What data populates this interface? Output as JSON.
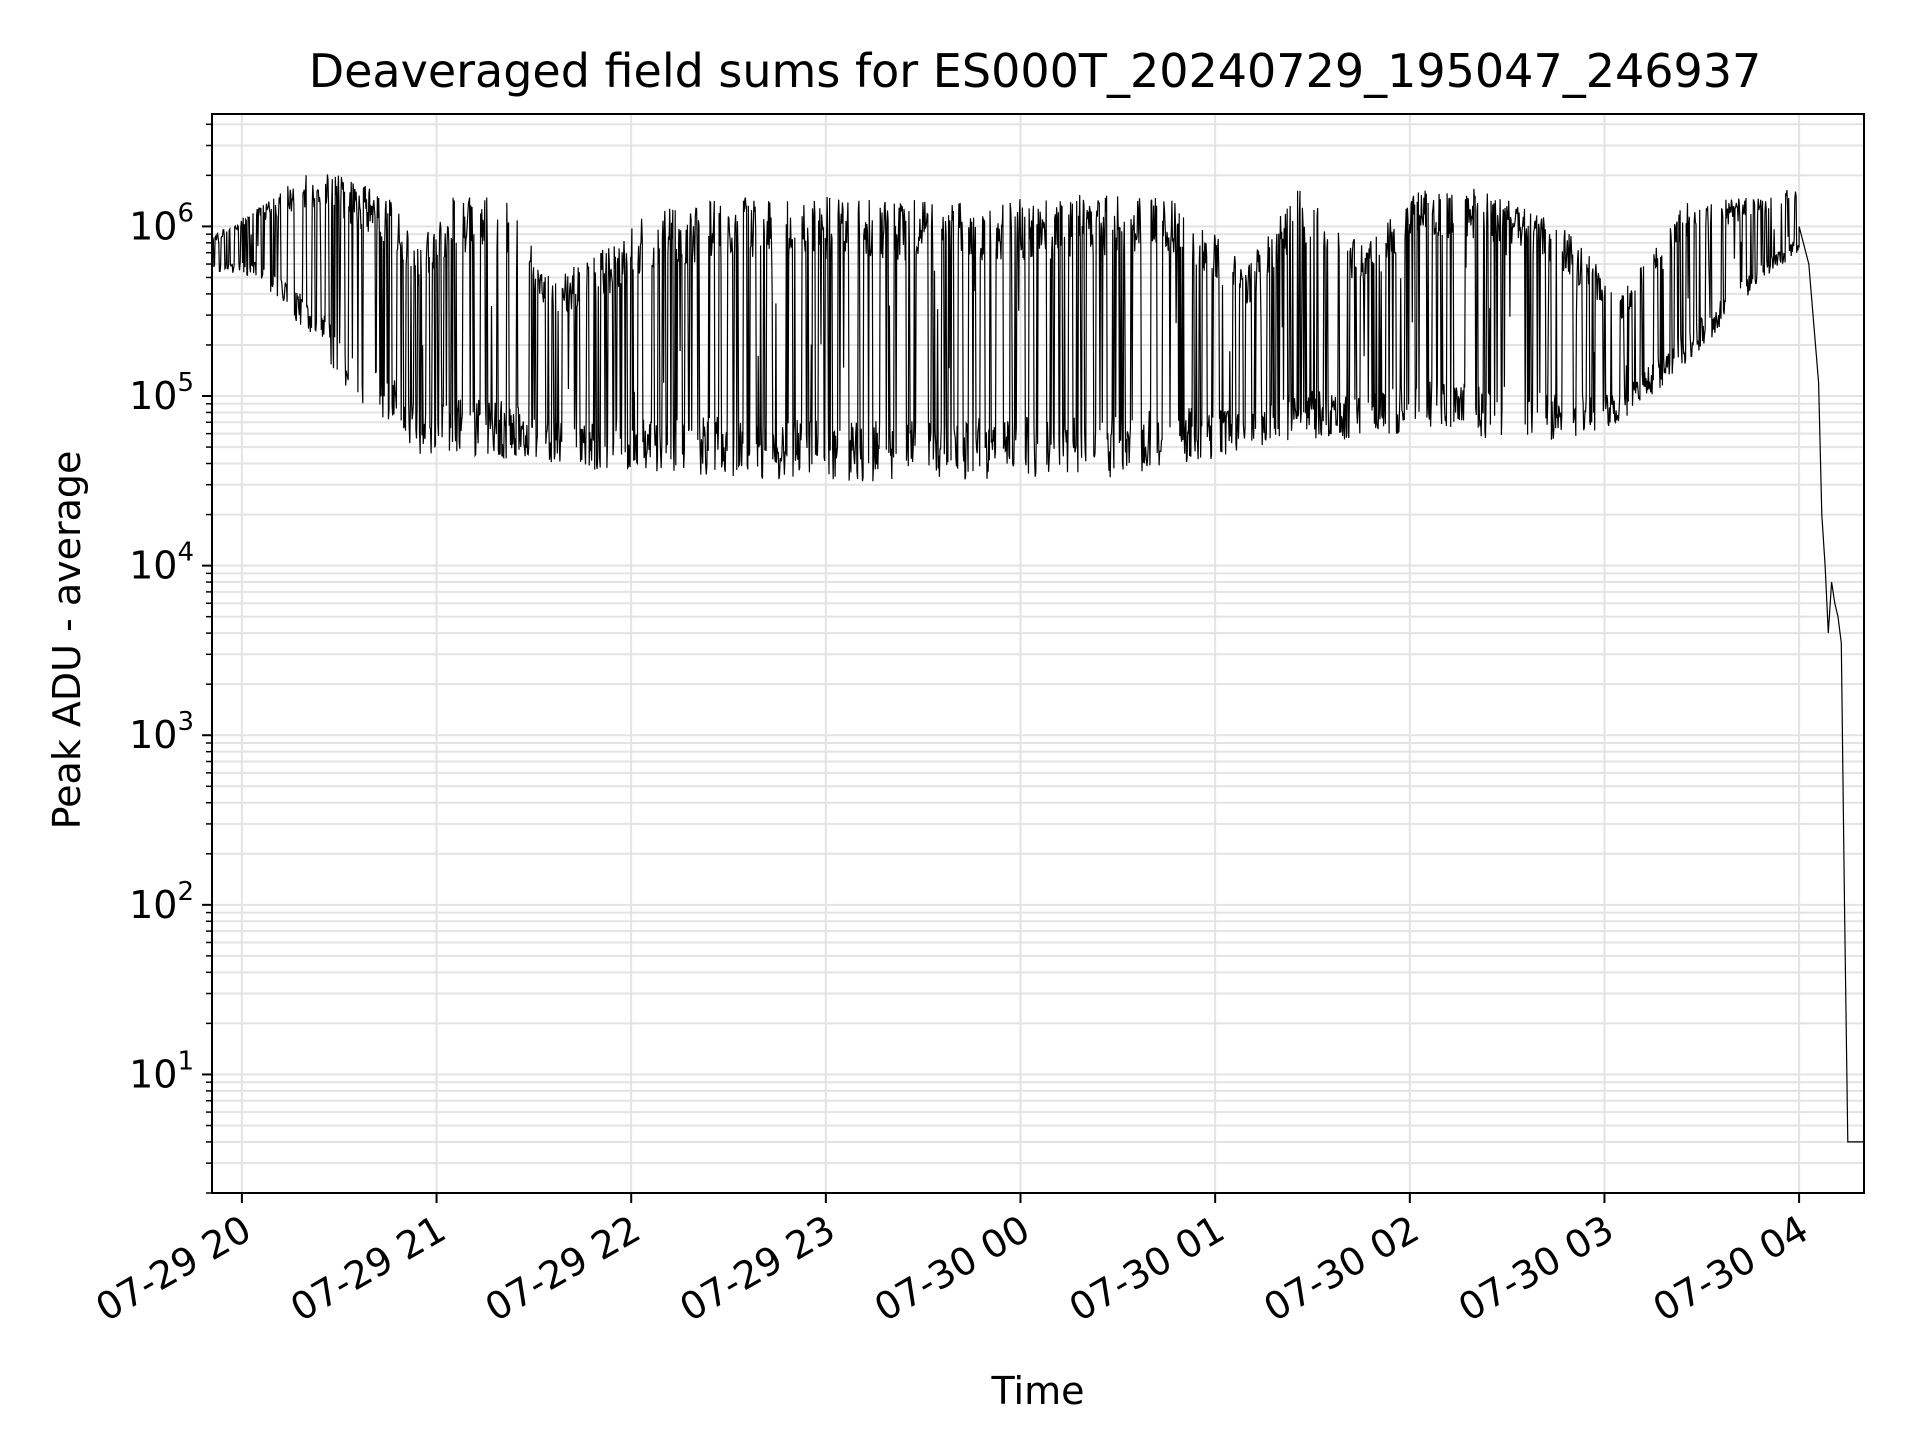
{
  "chart_data": {
    "type": "line",
    "title": "Deaveraged field sums for ES000T_20240729_195047_246937",
    "xlabel": "Time",
    "ylabel": "Peak ADU - average",
    "yscale": "log",
    "ylim": [
      2,
      4600000
    ],
    "xlim": [
      "2024-07-29 19:50:47",
      "2024-07-30 04:20:00"
    ],
    "grid": true,
    "line_color": "#000000",
    "grid_color": "#e3e3e3",
    "x_ticks": [
      {
        "t": "2024-07-29 20:00",
        "label": "07-29 20"
      },
      {
        "t": "2024-07-29 21:00",
        "label": "07-29 21"
      },
      {
        "t": "2024-07-29 22:00",
        "label": "07-29 22"
      },
      {
        "t": "2024-07-29 23:00",
        "label": "07-29 23"
      },
      {
        "t": "2024-07-30 00:00",
        "label": "07-30 00"
      },
      {
        "t": "2024-07-30 01:00",
        "label": "07-30 01"
      },
      {
        "t": "2024-07-30 02:00",
        "label": "07-30 02"
      },
      {
        "t": "2024-07-30 03:00",
        "label": "07-30 03"
      },
      {
        "t": "2024-07-30 04:00",
        "label": "07-30 04"
      }
    ],
    "y_ticks": [
      {
        "value": 10,
        "base": "10",
        "exp": "1"
      },
      {
        "value": 100,
        "base": "10",
        "exp": "2"
      },
      {
        "value": 1000,
        "base": "10",
        "exp": "3"
      },
      {
        "value": 10000,
        "base": "10",
        "exp": "4"
      },
      {
        "value": 100000,
        "base": "10",
        "exp": "5"
      },
      {
        "value": 1000000,
        "base": "10",
        "exp": "6"
      }
    ],
    "envelope": [
      {
        "t": "2024-07-29 19:51",
        "lo": 550000,
        "hi": 900000
      },
      {
        "t": "2024-07-29 20:05",
        "lo": 500000,
        "hi": 1300000
      },
      {
        "t": "2024-07-29 20:15",
        "lo": 300000,
        "hi": 1800000
      },
      {
        "t": "2024-07-29 20:25",
        "lo": 180000,
        "hi": 2300000
      },
      {
        "t": "2024-07-29 20:35",
        "lo": 90000,
        "hi": 1900000
      },
      {
        "t": "2024-07-29 20:45",
        "lo": 70000,
        "hi": 1500000
      },
      {
        "t": "2024-07-29 20:55",
        "lo": 45000,
        "hi": 800000
      },
      {
        "t": "2024-07-29 21:05",
        "lo": 45000,
        "hi": 1500000
      },
      {
        "t": "2024-07-29 21:20",
        "lo": 43000,
        "hi": 1600000
      },
      {
        "t": "2024-07-29 21:35",
        "lo": 40000,
        "hi": 500000
      },
      {
        "t": "2024-07-29 21:50",
        "lo": 36000,
        "hi": 700000
      },
      {
        "t": "2024-07-29 22:05",
        "lo": 35000,
        "hi": 1200000
      },
      {
        "t": "2024-07-29 22:30",
        "lo": 33000,
        "hi": 1500000
      },
      {
        "t": "2024-07-29 23:00",
        "lo": 31000,
        "hi": 1500000
      },
      {
        "t": "2024-07-29 23:30",
        "lo": 31000,
        "hi": 1450000
      },
      {
        "t": "2024-07-30 00:00",
        "lo": 33000,
        "hi": 1450000
      },
      {
        "t": "2024-07-30 00:30",
        "lo": 33000,
        "hi": 1600000
      },
      {
        "t": "2024-07-30 00:50",
        "lo": 40000,
        "hi": 1400000
      },
      {
        "t": "2024-07-30 01:10",
        "lo": 45000,
        "hi": 600000
      },
      {
        "t": "2024-07-30 01:25",
        "lo": 55000,
        "hi": 1700000
      },
      {
        "t": "2024-07-30 01:45",
        "lo": 55000,
        "hi": 800000
      },
      {
        "t": "2024-07-30 02:05",
        "lo": 60000,
        "hi": 1800000
      },
      {
        "t": "2024-07-30 02:30",
        "lo": 55000,
        "hi": 1600000
      },
      {
        "t": "2024-07-30 02:50",
        "lo": 55000,
        "hi": 900000
      },
      {
        "t": "2024-07-30 03:05",
        "lo": 70000,
        "hi": 400000
      },
      {
        "t": "2024-07-30 03:25",
        "lo": 150000,
        "hi": 1400000
      },
      {
        "t": "2024-07-30 03:50",
        "lo": 500000,
        "hi": 1500000
      },
      {
        "t": "2024-07-30 04:00",
        "lo": 700000,
        "hi": 1800000
      }
    ],
    "series": [
      {
        "x": [
          "2024-07-30 04:00",
          "2024-07-30 04:03",
          "2024-07-30 04:06",
          "2024-07-30 04:07",
          "2024-07-30 04:08",
          "2024-07-30 04:09",
          "2024-07-30 04:10",
          "2024-07-30 04:11",
          "2024-07-30 04:12",
          "2024-07-30 04:13",
          "2024-07-30 04:14",
          "2024-07-30 04:15",
          "2024-07-30 04:16",
          "2024-07-30 04:17",
          "2024-07-30 04:18",
          "2024-07-30 04:20"
        ],
        "y": [
          1000000,
          600000,
          120000,
          20000,
          10000,
          4000,
          8000,
          6000,
          5000,
          3500,
          100,
          4,
          4,
          4,
          4,
          4
        ]
      }
    ]
  }
}
